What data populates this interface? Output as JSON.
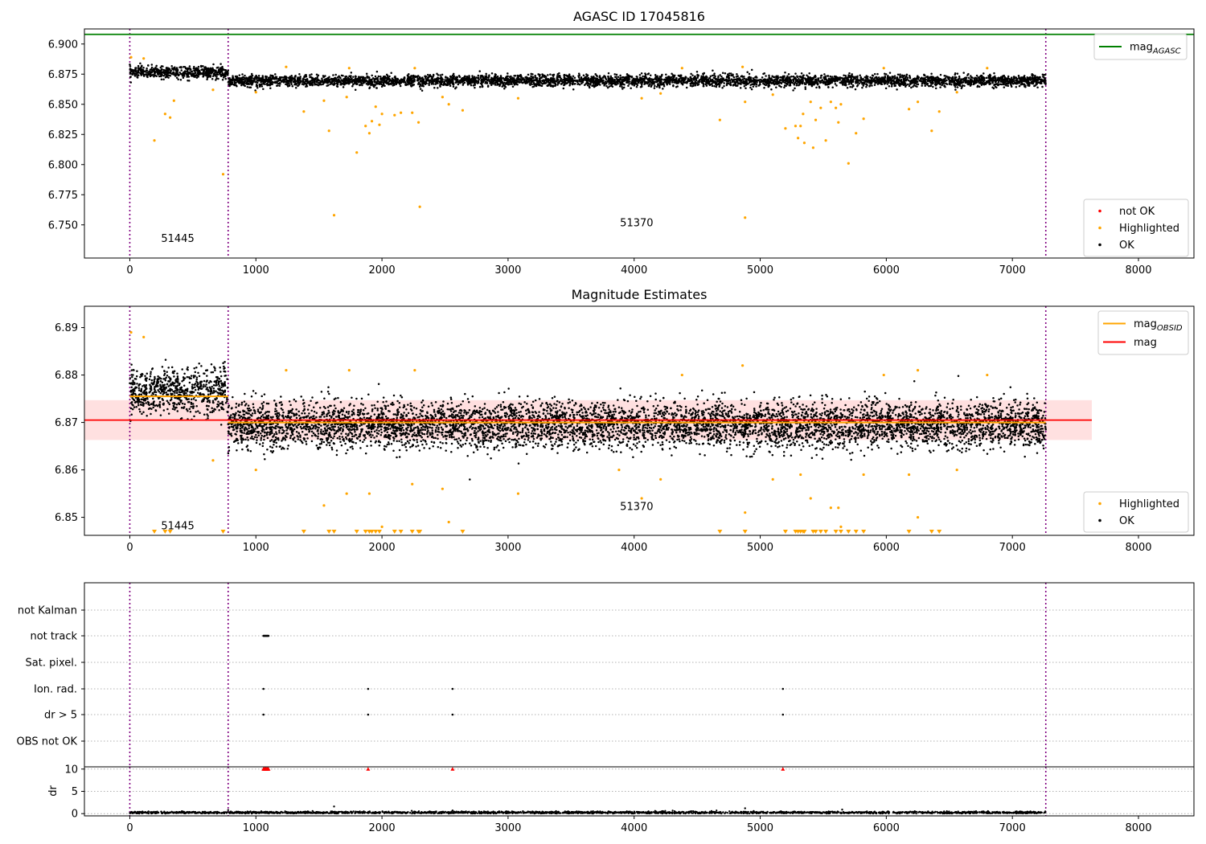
{
  "chart_data": [
    {
      "type": "scatter",
      "title": "AGASC ID 17045816",
      "xlabel": "",
      "ylabel": "",
      "xlim": [
        -360,
        8440
      ],
      "ylim": [
        6.7225,
        6.9125
      ],
      "xticks": [
        0,
        1000,
        2000,
        3000,
        4000,
        5000,
        6000,
        7000,
        8000
      ],
      "xtick_labels": [
        "0",
        "1000",
        "2000",
        "3000",
        "4000",
        "5000",
        "6000",
        "7000",
        "8000"
      ],
      "yticks": [
        6.75,
        6.775,
        6.8,
        6.825,
        6.85,
        6.875,
        6.9
      ],
      "ytick_labels": [
        "6.750",
        "6.775",
        "6.800",
        "6.825",
        "6.850",
        "6.875",
        "6.900"
      ],
      "hlines": [
        {
          "name": "mag_AGASC",
          "y": 6.908,
          "color": "#008000"
        }
      ],
      "vlines": [
        0,
        780,
        7265
      ],
      "obsid_labels": [
        {
          "text": "51445",
          "x": 380,
          "y": 6.736
        },
        {
          "text": "51370",
          "x": 4020,
          "y": 6.749
        }
      ],
      "legend_upper": {
        "position": "top-right",
        "entries": [
          {
            "label": "mag",
            "sub": "AGASC",
            "color": "#008000",
            "kind": "line"
          }
        ]
      },
      "legend_lower": {
        "position": "bottom-right",
        "entries": [
          {
            "label": "not OK",
            "color": "#ff0000",
            "kind": "point"
          },
          {
            "label": "Highlighted",
            "color": "#ffa500",
            "kind": "point"
          },
          {
            "label": "OK",
            "color": "#000000",
            "kind": "point"
          }
        ]
      },
      "series": [
        {
          "name": "OK",
          "color": "#000000",
          "segments": [
            {
              "x0": 0,
              "x1": 780,
              "mean": 6.8765,
              "spread": 0.004
            },
            {
              "x0": 780,
              "x1": 7265,
              "mean": 6.8695,
              "spread": 0.004
            }
          ]
        },
        {
          "name": "Highlighted",
          "color": "#ffa500",
          "points": [
            [
              10,
              6.889
            ],
            [
              110,
              6.888
            ],
            [
              195,
              6.82
            ],
            [
              280,
              6.842
            ],
            [
              320,
              6.839
            ],
            [
              350,
              6.853
            ],
            [
              660,
              6.862
            ],
            [
              740,
              6.792
            ],
            [
              1000,
              6.86
            ],
            [
              1240,
              6.881
            ],
            [
              1380,
              6.844
            ],
            [
              1540,
              6.853
            ],
            [
              1580,
              6.828
            ],
            [
              1620,
              6.758
            ],
            [
              1720,
              6.856
            ],
            [
              1740,
              6.88
            ],
            [
              1800,
              6.81
            ],
            [
              1870,
              6.832
            ],
            [
              1900,
              6.826
            ],
            [
              1920,
              6.836
            ],
            [
              1950,
              6.848
            ],
            [
              1980,
              6.833
            ],
            [
              2000,
              6.842
            ],
            [
              2100,
              6.841
            ],
            [
              2150,
              6.843
            ],
            [
              2240,
              6.843
            ],
            [
              2260,
              6.88
            ],
            [
              2290,
              6.835
            ],
            [
              2300,
              6.765
            ],
            [
              2480,
              6.856
            ],
            [
              2530,
              6.85
            ],
            [
              2640,
              6.845
            ],
            [
              3080,
              6.855
            ],
            [
              4060,
              6.855
            ],
            [
              4210,
              6.859
            ],
            [
              4380,
              6.88
            ],
            [
              4680,
              6.837
            ],
            [
              4860,
              6.881
            ],
            [
              4880,
              6.852
            ],
            [
              4880,
              6.756
            ],
            [
              5100,
              6.858
            ],
            [
              5200,
              6.83
            ],
            [
              5280,
              6.832
            ],
            [
              5300,
              6.822
            ],
            [
              5320,
              6.832
            ],
            [
              5340,
              6.842
            ],
            [
              5350,
              6.818
            ],
            [
              5400,
              6.852
            ],
            [
              5420,
              6.814
            ],
            [
              5440,
              6.837
            ],
            [
              5480,
              6.847
            ],
            [
              5520,
              6.82
            ],
            [
              5560,
              6.852
            ],
            [
              5600,
              6.847
            ],
            [
              5620,
              6.835
            ],
            [
              5640,
              6.85
            ],
            [
              5700,
              6.801
            ],
            [
              5760,
              6.826
            ],
            [
              5820,
              6.838
            ],
            [
              5980,
              6.88
            ],
            [
              6180,
              6.846
            ],
            [
              6250,
              6.852
            ],
            [
              6360,
              6.828
            ],
            [
              6420,
              6.844
            ],
            [
              6560,
              6.86
            ],
            [
              6800,
              6.88
            ]
          ]
        },
        {
          "name": "not OK",
          "color": "#ff0000",
          "points": []
        }
      ]
    },
    {
      "type": "scatter",
      "title": "Magnitude Estimates",
      "xlabel": "",
      "ylabel": "",
      "xlim": [
        -360,
        8440
      ],
      "ylim": [
        6.8462,
        6.8945
      ],
      "xticks": [
        0,
        1000,
        2000,
        3000,
        4000,
        5000,
        6000,
        7000,
        8000
      ],
      "xtick_labels": [
        "0",
        "1000",
        "2000",
        "3000",
        "4000",
        "5000",
        "6000",
        "7000",
        "8000"
      ],
      "yticks": [
        6.85,
        6.86,
        6.87,
        6.88,
        6.89
      ],
      "ytick_labels": [
        "6.85",
        "6.86",
        "6.87",
        "6.88",
        "6.89"
      ],
      "mag": {
        "value": 6.8705,
        "band": [
          6.8663,
          6.8747
        ],
        "x_range": [
          -360,
          7630
        ],
        "color": "#ff0000"
      },
      "mag_obsid": [
        {
          "x0": 0,
          "x1": 780,
          "value": 6.8755
        },
        {
          "x0": 780,
          "x1": 7265,
          "value": 6.87
        }
      ],
      "vlines": [
        0,
        780,
        7265
      ],
      "obsid_labels": [
        {
          "text": "51445",
          "x": 380,
          "y": 6.8475
        },
        {
          "text": "51370",
          "x": 4020,
          "y": 6.8515
        }
      ],
      "legend_upper": {
        "position": "top-right",
        "entries": [
          {
            "label": "mag",
            "sub": "OBSID",
            "color": "#ffa500",
            "kind": "line"
          },
          {
            "label": "mag",
            "sub": "",
            "color": "#ff0000",
            "kind": "line"
          }
        ]
      },
      "legend_lower": {
        "position": "bottom-right",
        "entries": [
          {
            "label": "Highlighted",
            "color": "#ffa500",
            "kind": "point"
          },
          {
            "label": "OK",
            "color": "#000000",
            "kind": "point"
          }
        ]
      },
      "series": [
        {
          "name": "OK",
          "color": "#000000",
          "segments": [
            {
              "x0": 0,
              "x1": 780,
              "mean": 6.8765,
              "spread": 0.004
            },
            {
              "x0": 780,
              "x1": 7265,
              "mean": 6.8695,
              "spread": 0.004
            }
          ]
        },
        {
          "name": "Highlighted",
          "color": "#ffa500",
          "points": [
            [
              10,
              6.889
            ],
            [
              110,
              6.888
            ],
            [
              660,
              6.862
            ],
            [
              1000,
              6.86
            ],
            [
              1240,
              6.881
            ],
            [
              1540,
              6.8525
            ],
            [
              1720,
              6.855
            ],
            [
              1740,
              6.881
            ],
            [
              1900,
              6.855
            ],
            [
              2000,
              6.848
            ],
            [
              2240,
              6.857
            ],
            [
              2260,
              6.881
            ],
            [
              2480,
              6.856
            ],
            [
              2530,
              6.849
            ],
            [
              3080,
              6.855
            ],
            [
              3880,
              6.86
            ],
            [
              4060,
              6.854
            ],
            [
              4210,
              6.858
            ],
            [
              4380,
              6.88
            ],
            [
              4860,
              6.882
            ],
            [
              4880,
              6.851
            ],
            [
              5100,
              6.858
            ],
            [
              5320,
              6.859
            ],
            [
              5400,
              6.854
            ],
            [
              5560,
              6.852
            ],
            [
              5620,
              6.852
            ],
            [
              5640,
              6.848
            ],
            [
              5820,
              6.859
            ],
            [
              5980,
              6.88
            ],
            [
              6180,
              6.859
            ],
            [
              6250,
              6.881
            ],
            [
              6250,
              6.85
            ],
            [
              6560,
              6.86
            ],
            [
              6800,
              6.88
            ]
          ]
        }
      ],
      "clipped_markers_x": [
        195,
        280,
        320,
        740,
        1380,
        1580,
        1620,
        1800,
        1870,
        1900,
        1920,
        1950,
        1980,
        2100,
        2150,
        2240,
        2290,
        2300,
        2640,
        4680,
        4880,
        5200,
        5280,
        5300,
        5320,
        5340,
        5350,
        5420,
        5440,
        5480,
        5520,
        5600,
        5640,
        5700,
        5760,
        5820,
        6180,
        6360,
        6420
      ]
    },
    {
      "type": "scatter",
      "title": "",
      "xlabel": "",
      "xlim": [
        -360,
        8440
      ],
      "xticks": [
        0,
        1000,
        2000,
        3000,
        4000,
        5000,
        6000,
        7000,
        8000
      ],
      "xtick_labels": [
        "0",
        "1000",
        "2000",
        "3000",
        "4000",
        "5000",
        "6000",
        "7000",
        "8000"
      ],
      "flag_categories": [
        "not Kalman",
        "not track",
        "Sat. pixel.",
        "Ion. rad.",
        "dr > 5",
        "OBS not OK"
      ],
      "flag_points": {
        "not Kalman": [],
        "not track": [
          1060,
          1065,
          1070,
          1075,
          1080,
          1085,
          1090,
          1095,
          1100
        ],
        "Sat. pixel.": [],
        "Ion. rad.": [
          1060,
          1890,
          2560,
          5180
        ],
        "dr > 5": [
          1060,
          1890,
          2560,
          5180
        ],
        "OBS not OK": []
      },
      "vlines": [
        0,
        780,
        7265
      ],
      "dr_panel": {
        "ylabel": "dr",
        "ylim": [
          -0.5,
          10.5
        ],
        "yticks": [
          0,
          5,
          10
        ],
        "ytick_labels": [
          "0",
          "5",
          "10"
        ],
        "clipped_x": [
          1060,
          1065,
          1070,
          1075,
          1080,
          1085,
          1090,
          1095,
          1100,
          1890,
          2560,
          5180
        ],
        "outliers": [
          [
            1620,
            1.6
          ],
          [
            4880,
            1.2
          ],
          [
            5650,
            0.9
          ],
          [
            2560,
            0.7
          ],
          [
            780,
            0.8
          ]
        ],
        "baseline": {
          "x0": 0,
          "x1": 7265,
          "mean": 0.25,
          "spread": 0.25
        }
      }
    }
  ]
}
